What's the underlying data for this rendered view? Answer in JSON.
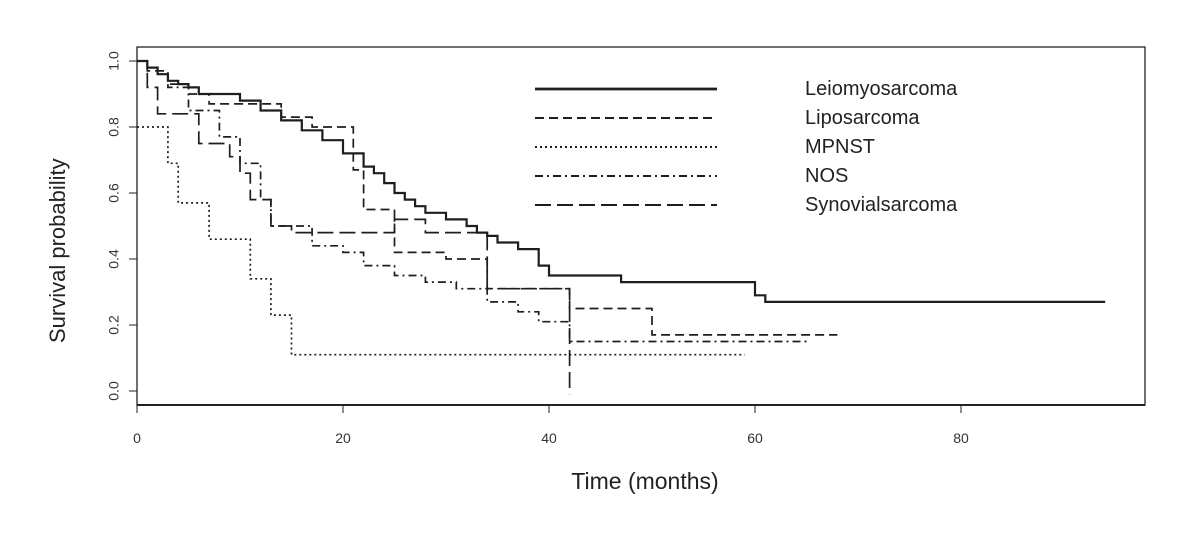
{
  "chart_data": {
    "type": "line",
    "xlabel": "Time (months)",
    "ylabel": "Survival probability",
    "xlim": [
      0,
      98
    ],
    "ylim": [
      -0.04,
      1.03
    ],
    "xticks": [
      "0",
      "20",
      "40",
      "60",
      "80"
    ],
    "xtick_values": [
      0,
      20,
      40,
      60,
      80
    ],
    "yticks": [
      "0.0",
      "0.2",
      "0.4",
      "0.6",
      "0.8",
      "1.0"
    ],
    "ytick_values": [
      0.0,
      0.2,
      0.4,
      0.6,
      0.8,
      1.0
    ],
    "grid": false,
    "legend_position": "top-right",
    "series": [
      {
        "name": "Leiomyosarcoma",
        "dash": "solid",
        "x": [
          0,
          1,
          2,
          3,
          4,
          5,
          6,
          10,
          12,
          14,
          16,
          18,
          20,
          22,
          23,
          24,
          25,
          26,
          27,
          28,
          30,
          32,
          33,
          34,
          35,
          37,
          39,
          40,
          47,
          60,
          61,
          94
        ],
        "y": [
          1.0,
          0.98,
          0.96,
          0.94,
          0.93,
          0.92,
          0.9,
          0.88,
          0.85,
          0.82,
          0.79,
          0.76,
          0.72,
          0.68,
          0.66,
          0.63,
          0.6,
          0.58,
          0.56,
          0.54,
          0.52,
          0.5,
          0.48,
          0.47,
          0.45,
          0.43,
          0.38,
          0.35,
          0.33,
          0.29,
          0.27,
          0.27
        ]
      },
      {
        "name": "Liposarcoma",
        "dash": "dashed",
        "x": [
          0,
          1,
          3,
          5,
          7,
          14,
          17,
          21,
          22,
          25,
          30,
          34,
          42,
          50,
          68
        ],
        "y": [
          1.0,
          0.97,
          0.93,
          0.9,
          0.87,
          0.83,
          0.8,
          0.67,
          0.55,
          0.42,
          0.4,
          0.31,
          0.25,
          0.17,
          0.17
        ]
      },
      {
        "name": "MPNST",
        "dash": "dotted",
        "x": [
          0,
          2,
          3,
          4,
          7,
          11,
          13,
          15,
          59
        ],
        "y": [
          0.8,
          0.8,
          0.69,
          0.57,
          0.46,
          0.34,
          0.23,
          0.11,
          0.11
        ]
      },
      {
        "name": "NOS",
        "dash": "dashdot",
        "x": [
          0,
          1,
          2,
          3,
          5,
          8,
          10,
          12,
          13,
          17,
          20,
          22,
          25,
          28,
          31,
          34,
          37,
          39,
          42,
          65
        ],
        "y": [
          1.0,
          0.98,
          0.96,
          0.92,
          0.85,
          0.77,
          0.69,
          0.58,
          0.5,
          0.44,
          0.42,
          0.38,
          0.35,
          0.33,
          0.31,
          0.27,
          0.24,
          0.21,
          0.15,
          0.15
        ]
      },
      {
        "name": "Synovialsarcoma",
        "dash": "longdash",
        "x": [
          0,
          1,
          2,
          6,
          9,
          10,
          11,
          13,
          15,
          25,
          28,
          34,
          42
        ],
        "y": [
          1.0,
          0.92,
          0.84,
          0.75,
          0.71,
          0.66,
          0.58,
          0.5,
          0.48,
          0.52,
          0.48,
          0.31,
          -0.01
        ]
      }
    ]
  }
}
